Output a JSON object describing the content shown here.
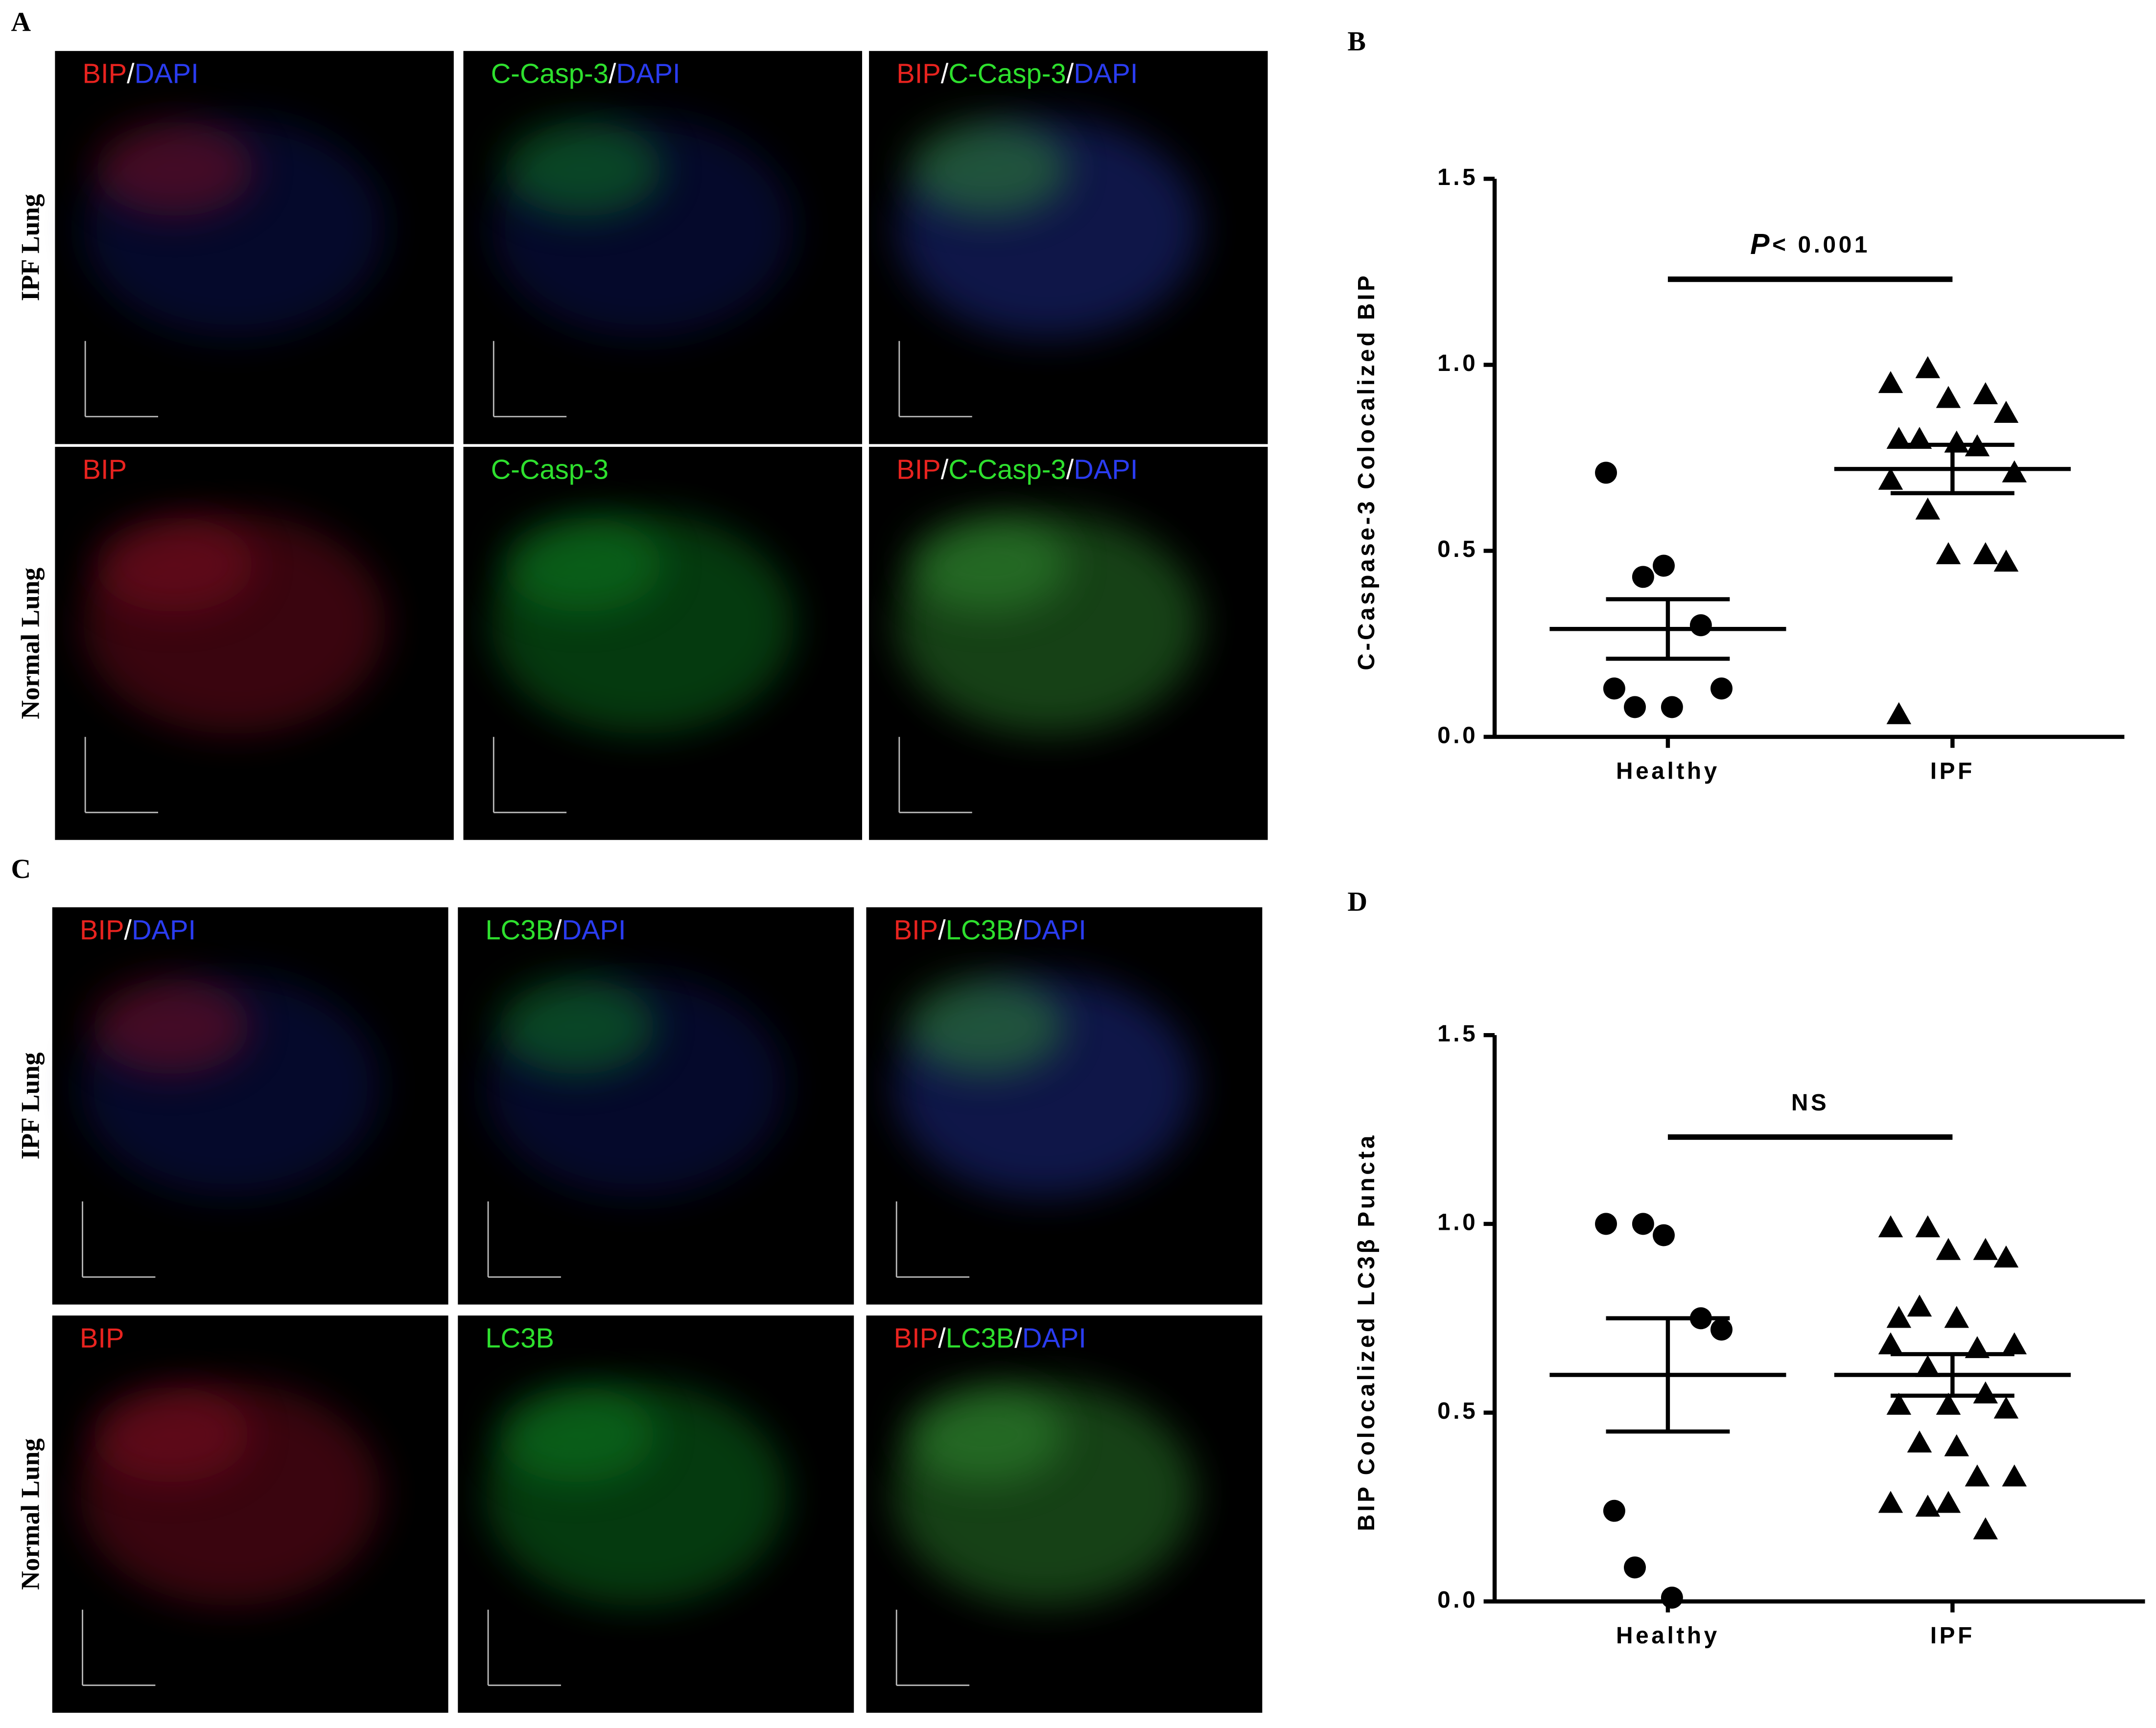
{
  "micrographs": [
    {
      "label": "A",
      "rows": [
        "IPF Lung",
        "Normal Lung"
      ],
      "images": [
        [
          [
            {
              "text": "BIP",
              "color": "#e8231f"
            },
            {
              "text": "/",
              "color": "#ffffff"
            },
            {
              "text": "DAPI",
              "color": "#2a3cf0"
            }
          ],
          [
            {
              "text": "C-Casp-3",
              "color": "#2ee02e"
            },
            {
              "text": "/",
              "color": "#ffffff"
            },
            {
              "text": "DAPI",
              "color": "#2a3cf0"
            }
          ],
          [
            {
              "text": "BIP",
              "color": "#e8231f"
            },
            {
              "text": "/",
              "color": "#ffffff"
            },
            {
              "text": "C-Casp-3",
              "color": "#2ee02e"
            },
            {
              "text": "/",
              "color": "#ffffff"
            },
            {
              "text": "DAPI",
              "color": "#2a3cf0"
            }
          ]
        ],
        [
          [
            {
              "text": "BIP",
              "color": "#e8231f"
            }
          ],
          [
            {
              "text": "C-Casp-3",
              "color": "#2ee02e"
            }
          ],
          [
            {
              "text": "BIP",
              "color": "#e8231f"
            },
            {
              "text": "/",
              "color": "#ffffff"
            },
            {
              "text": "C-Casp-3",
              "color": "#2ee02e"
            },
            {
              "text": "/",
              "color": "#ffffff"
            },
            {
              "text": "DAPI",
              "color": "#2a3cf0"
            }
          ]
        ]
      ]
    },
    {
      "label": "C",
      "rows": [
        "IPF Lung",
        "Normal Lung"
      ],
      "images": [
        [
          [
            {
              "text": "BIP",
              "color": "#e8231f"
            },
            {
              "text": "/",
              "color": "#ffffff"
            },
            {
              "text": "DAPI",
              "color": "#2a3cf0"
            }
          ],
          [
            {
              "text": "LC3B",
              "color": "#2ee02e"
            },
            {
              "text": "/",
              "color": "#ffffff"
            },
            {
              "text": "DAPI",
              "color": "#2a3cf0"
            }
          ],
          [
            {
              "text": "BIP",
              "color": "#e8231f"
            },
            {
              "text": "/",
              "color": "#ffffff"
            },
            {
              "text": "LC3B",
              "color": "#2ee02e"
            },
            {
              "text": "/",
              "color": "#ffffff"
            },
            {
              "text": "DAPI",
              "color": "#2a3cf0"
            }
          ]
        ],
        [
          [
            {
              "text": "BIP",
              "color": "#e8231f"
            }
          ],
          [
            {
              "text": "LC3B",
              "color": "#2ee02e"
            }
          ],
          [
            {
              "text": "BIP",
              "color": "#e8231f"
            },
            {
              "text": "/",
              "color": "#ffffff"
            },
            {
              "text": "LC3B",
              "color": "#2ee02e"
            },
            {
              "text": "/",
              "color": "#ffffff"
            },
            {
              "text": "DAPI",
              "color": "#2a3cf0"
            }
          ]
        ]
      ]
    }
  ],
  "chart_data": [
    {
      "type": "dot",
      "label": "B",
      "y_label": "C-Caspase-3 Colocalized BIP",
      "annotation": {
        "italic": "P",
        "text": "< 0.001"
      },
      "categories": [
        "Healthy",
        "IPF"
      ],
      "markers": [
        "circle",
        "triangle"
      ],
      "color": "#000000",
      "points": [
        [
          0.71,
          0.43,
          0.46,
          0.3,
          0.13,
          0.13,
          0.08,
          0.08
        ],
        [
          0.95,
          0.99,
          0.91,
          0.92,
          0.87,
          0.8,
          0.8,
          0.79,
          0.78,
          0.71,
          0.69,
          0.61,
          0.49,
          0.49,
          0.47,
          0.06
        ]
      ],
      "mean": [
        0.29,
        0.72
      ],
      "error": [
        0.08,
        0.065
      ],
      "ylim": [
        0,
        1.5
      ],
      "yticks": [
        {
          "value": 0,
          "label": "0.0"
        },
        0.5,
        {
          "value": 1,
          "label": "1.0"
        },
        1.5
      ]
    },
    {
      "type": "dot",
      "label": "D",
      "y_label": "BIP Colocalized LC3β Puncta",
      "annotation": {
        "text": "NS"
      },
      "categories": [
        "Healthy",
        "IPF"
      ],
      "markers": [
        "circle",
        "triangle"
      ],
      "color": "#000000",
      "points": [
        [
          1.0,
          1.0,
          0.97,
          0.75,
          0.72,
          0.24,
          0.09,
          0.01
        ],
        [
          0.99,
          0.99,
          0.93,
          0.93,
          0.91,
          0.75,
          0.78,
          0.75,
          0.67,
          0.68,
          0.68,
          0.62,
          0.52,
          0.55,
          0.51,
          0.52,
          0.42,
          0.41,
          0.33,
          0.33,
          0.26,
          0.25,
          0.26,
          0.19
        ]
      ],
      "mean": [
        0.6,
        0.6
      ],
      "error": [
        0.15,
        0.055
      ],
      "ylim": [
        0,
        1.5
      ],
      "yticks": [
        {
          "value": 0,
          "label": "0.0"
        },
        0.5,
        {
          "value": 1,
          "label": "1.0"
        },
        1.5
      ]
    }
  ]
}
